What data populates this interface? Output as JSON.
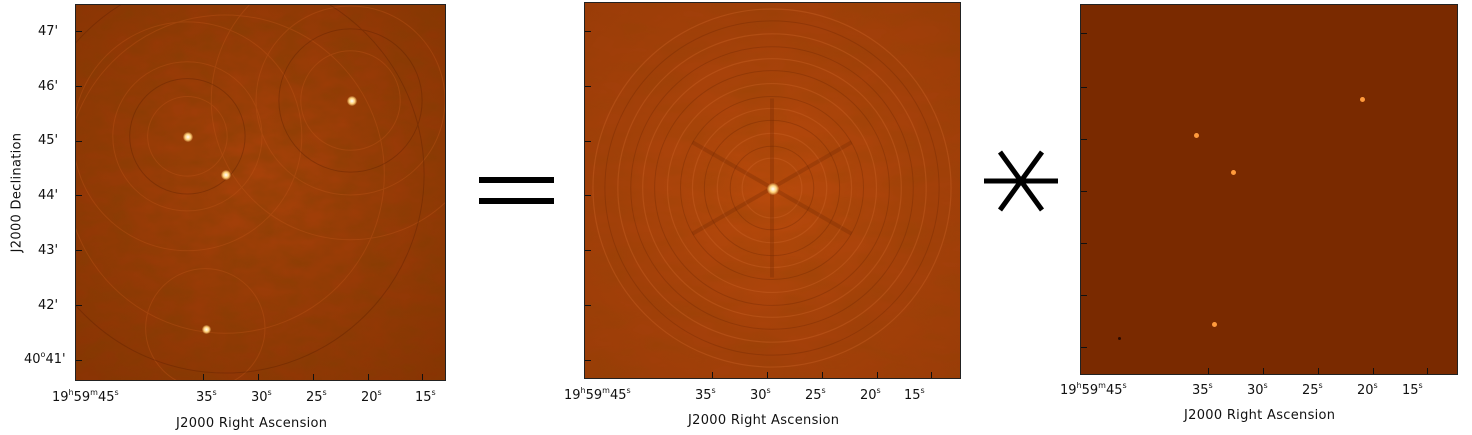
{
  "figure": {
    "operators": {
      "equals": "=",
      "convolve": "∗"
    },
    "panels": [
      {
        "id": "dirty-image",
        "ylabel": "J2000 Declination",
        "xlabel": "J2000 Right Ascension",
        "ytick_labels": [
          "47'",
          "46'",
          "45'",
          "44'",
          "43'",
          "42'"
        ],
        "ytick_bottom": {
          "deg": "40",
          "min": "41'"
        },
        "xtick_first": {
          "h": "19",
          "m": "59",
          "s": "45"
        },
        "xtick_labels": [
          "35",
          "30",
          "25",
          "20",
          "15"
        ],
        "sec_mark": "s"
      },
      {
        "id": "psf",
        "xlabel": "J2000 Right Ascension",
        "xtick_first": {
          "h": "19",
          "m": "59",
          "s": "45"
        },
        "xtick_labels": [
          "35",
          "30",
          "25",
          "20",
          "15"
        ],
        "sec_mark": "s"
      },
      {
        "id": "sky-model",
        "xlabel": "J2000 Right Ascension",
        "xtick_first": {
          "h": "19",
          "m": "59",
          "s": "45"
        },
        "xtick_labels": [
          "35",
          "30",
          "25",
          "20",
          "15"
        ],
        "sec_mark": "s"
      }
    ],
    "colors": {
      "background_dark": "#7a2a00",
      "image_mid": "#b5480c",
      "source": "#ffd27a"
    }
  }
}
